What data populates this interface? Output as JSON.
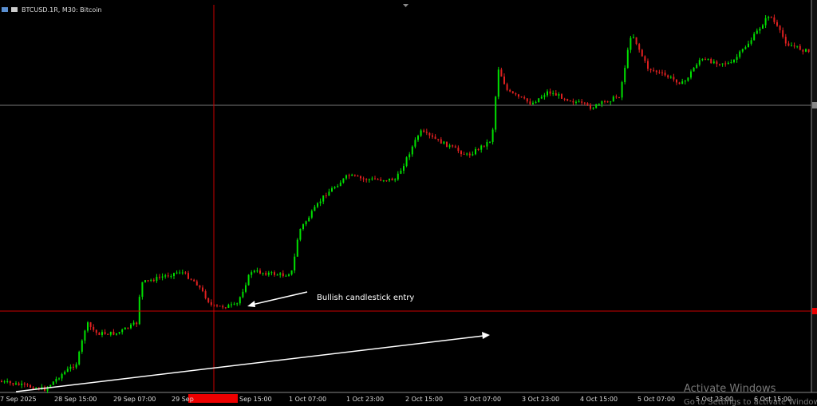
{
  "header": {
    "symbol": "BTCUSD.1R, M30: Bitcoin"
  },
  "time_axis": {
    "labels": [
      "7 Sep 2025",
      "28 Sep 15:00",
      "29 Sep 07:00",
      "29 Sep",
      "Sep 15:00",
      "1 Oct 07:00",
      "1 Oct 23:00",
      "2 Oct 15:00",
      "3 Oct 07:00",
      "3 Oct 23:00",
      "4 Oct 15:00",
      "5 Oct 07:00",
      "5 Oct 23:00",
      "6 Oct 15:00"
    ]
  },
  "annotation": "Bullish candlestick entry",
  "watermark": {
    "title": "Activate Windows",
    "subtitle": "Go to Settings to activate Windows."
  }
}
